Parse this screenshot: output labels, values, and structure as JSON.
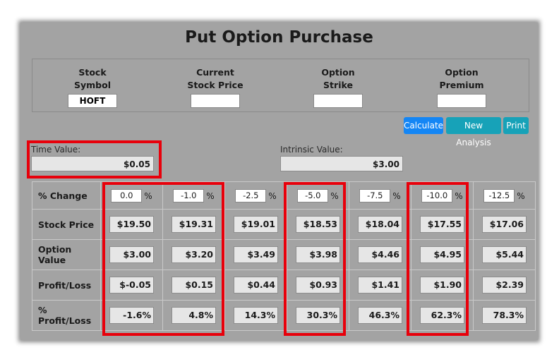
{
  "title": "Put Option Purchase",
  "fields": [
    {
      "label_line1": "Stock",
      "label_line2": "Symbol",
      "value": "HOFT"
    },
    {
      "label_line1": "Current",
      "label_line2": "Stock Price",
      "value": ""
    },
    {
      "label_line1": "Option",
      "label_line2": "Strike",
      "value": ""
    },
    {
      "label_line1": "Option",
      "label_line2": "Premium",
      "value": ""
    }
  ],
  "buttons": {
    "calculate": "Calculate",
    "new_analysis": "New Analysis",
    "print": "Print"
  },
  "time_value": {
    "label": "Time Value:",
    "value": "$0.05"
  },
  "intrinsic_value": {
    "label": "Intrinsic Value:",
    "value": "$3.00"
  },
  "table": {
    "pct_sign": "%",
    "row_headers": [
      "% Change",
      "Stock Price",
      "Option Value",
      "Profit/Loss",
      "% Profit/Loss"
    ],
    "pct_change": [
      "0.0",
      "-1.0",
      "-2.5",
      "-5.0",
      "-7.5",
      "-10.0",
      "-12.5"
    ],
    "stock_price": [
      "$19.50",
      "$19.31",
      "$19.01",
      "$18.53",
      "$18.04",
      "$17.55",
      "$17.06"
    ],
    "option_value": [
      "$3.00",
      "$3.20",
      "$3.49",
      "$3.98",
      "$4.46",
      "$4.95",
      "$5.44"
    ],
    "profit_loss": [
      "$-0.05",
      "$0.15",
      "$0.44",
      "$0.93",
      "$1.41",
      "$1.90",
      "$2.39"
    ],
    "pct_profit_loss": [
      "-1.6%",
      "4.8%",
      "14.3%",
      "30.3%",
      "46.3%",
      "62.3%",
      "78.3%"
    ]
  },
  "highlight_color": "#e8000b"
}
